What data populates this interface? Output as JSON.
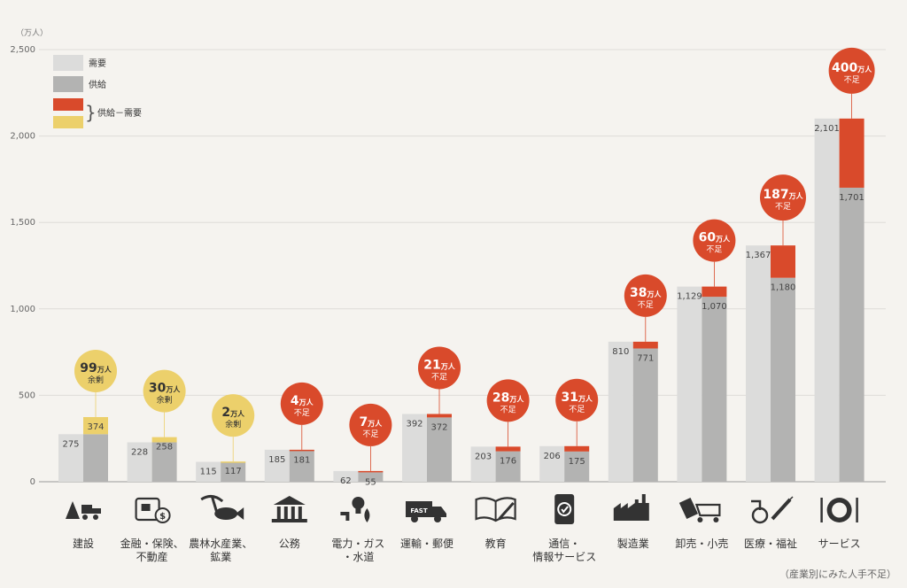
{
  "chart_data": {
    "type": "bar",
    "unit_label": "（万人）",
    "ylim": [
      0,
      2500
    ],
    "yticks": [
      0,
      500,
      1000,
      1500,
      2000,
      2500
    ],
    "ytick_labels": [
      "0",
      "500",
      "1,000",
      "1,500",
      "2,000",
      "2,500"
    ],
    "legend": {
      "demand": "需要",
      "supply": "供給",
      "diff": "供給－需要"
    },
    "categories": [
      {
        "label": [
          "建設"
        ],
        "icon": "construction-icon",
        "demand": 275,
        "supply": 374,
        "demand_label": "275",
        "supply_label": "374",
        "gap": 99,
        "status": "surplus",
        "status_text": "余剰"
      },
      {
        "label": [
          "金融・保険、",
          "不動産"
        ],
        "icon": "finance-icon",
        "demand": 228,
        "supply": 258,
        "demand_label": "228",
        "supply_label": "258",
        "gap": 30,
        "status": "surplus",
        "status_text": "余剰"
      },
      {
        "label": [
          "農林水産業、",
          "鉱業"
        ],
        "icon": "agriculture-icon",
        "demand": 115,
        "supply": 117,
        "demand_label": "115",
        "supply_label": "117",
        "gap": 2,
        "status": "surplus",
        "status_text": "余剰"
      },
      {
        "label": [
          "公務"
        ],
        "icon": "government-icon",
        "demand": 185,
        "supply": 181,
        "demand_label": "185",
        "supply_label": "181",
        "gap": 4,
        "status": "shortage",
        "status_text": "不足"
      },
      {
        "label": [
          "電力・ガス",
          "・水道"
        ],
        "icon": "utilities-icon",
        "demand": 62,
        "supply": 55,
        "demand_label": "62",
        "supply_label": "55",
        "gap": 7,
        "status": "shortage",
        "status_text": "不足"
      },
      {
        "label": [
          "運輸・郵便"
        ],
        "icon": "truck-icon",
        "demand": 392,
        "supply": 372,
        "demand_label": "392",
        "supply_label": "372",
        "gap": 21,
        "status": "shortage",
        "status_text": "不足"
      },
      {
        "label": [
          "教育"
        ],
        "icon": "book-icon",
        "demand": 203,
        "supply": 176,
        "demand_label": "203",
        "supply_label": "176",
        "gap": 28,
        "status": "shortage",
        "status_text": "不足"
      },
      {
        "label": [
          "通信・",
          "情報サービス"
        ],
        "icon": "smartphone-icon",
        "demand": 206,
        "supply": 175,
        "demand_label": "206",
        "supply_label": "175",
        "gap": 31,
        "status": "shortage",
        "status_text": "不足"
      },
      {
        "label": [
          "製造業"
        ],
        "icon": "factory-icon",
        "demand": 810,
        "supply": 771,
        "demand_label": "810",
        "supply_label": "771",
        "gap": 38,
        "status": "shortage",
        "status_text": "不足"
      },
      {
        "label": [
          "卸売・小売"
        ],
        "icon": "shopping-cart-icon",
        "demand": 1129,
        "supply": 1070,
        "demand_label": "1,129",
        "supply_label": "1,070",
        "gap": 60,
        "status": "shortage",
        "status_text": "不足"
      },
      {
        "label": [
          "医療・福祉"
        ],
        "icon": "medical-icon",
        "demand": 1367,
        "supply": 1180,
        "demand_label": "1,367",
        "supply_label": "1,180",
        "gap": 187,
        "status": "shortage",
        "status_text": "不足"
      },
      {
        "label": [
          "サービス"
        ],
        "icon": "dining-icon",
        "demand": 2101,
        "supply": 1701,
        "demand_label": "2,101",
        "supply_label": "1,701",
        "gap": 400,
        "status": "shortage",
        "status_text": "不足"
      }
    ],
    "badge_unit": "万人",
    "caption": "（産業別にみた人手不足）",
    "colors": {
      "demand": "#dcdcdb",
      "supply": "#b3b3b2",
      "shortage": "#d94a2b",
      "surplus": "#ecd06b",
      "grid": "#dedcd8",
      "axis": "#999999"
    }
  }
}
